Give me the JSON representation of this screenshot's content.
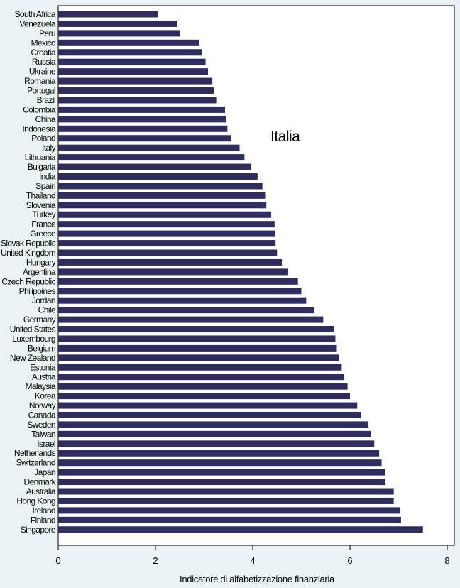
{
  "chart_data": {
    "type": "bar",
    "orientation": "horizontal",
    "categories": [
      "South Africa",
      "Venezuela",
      "Peru",
      "Mexico",
      "Croatia",
      "Russia",
      "Ukraine",
      "Romania",
      "Portugal",
      "Brazil",
      "Colombia",
      "China",
      "Indonesia",
      "Poland",
      "Italy",
      "Lithuania",
      "Bulgaria",
      "India",
      "Spain",
      "Thailand",
      "Slovenia",
      "Turkey",
      "France",
      "Greece",
      "Slovak Republic",
      "United Kingdom",
      "Hungary",
      "Argentina",
      "Czech Republic",
      "Philippines",
      "Jordan",
      "Chile",
      "Germany",
      "United States",
      "Luxembourg",
      "Belgium",
      "New Zealand",
      "Estonia",
      "Austria",
      "Malaysia",
      "Korea",
      "Norway",
      "Canada",
      "Sweden",
      "Taiwan",
      "Israel",
      "Netherlands",
      "Switzerland",
      "Japan",
      "Denmark",
      "Australia",
      "Hong Kong",
      "Ireland",
      "Finland",
      "Singapore"
    ],
    "values": [
      2.05,
      2.45,
      2.5,
      2.9,
      2.95,
      3.03,
      3.08,
      3.17,
      3.2,
      3.25,
      3.43,
      3.45,
      3.48,
      3.55,
      3.73,
      3.83,
      3.97,
      4.1,
      4.2,
      4.27,
      4.28,
      4.38,
      4.45,
      4.46,
      4.47,
      4.5,
      4.6,
      4.73,
      4.93,
      5.0,
      5.1,
      5.27,
      5.45,
      5.67,
      5.7,
      5.73,
      5.77,
      5.83,
      5.88,
      5.95,
      6.0,
      6.15,
      6.22,
      6.38,
      6.43,
      6.5,
      6.6,
      6.65,
      6.73,
      6.73,
      6.9,
      6.9,
      7.03,
      7.05,
      7.5
    ],
    "xlabel": "Indicatore di alfabetizzazione finanziaria",
    "ylabel": "",
    "xlim": [
      0,
      8
    ],
    "xticks": [
      0,
      2,
      4,
      6,
      8
    ],
    "grid": false,
    "legend": "none",
    "annotation": "Italia",
    "bar_color": "#2e2d5e",
    "plot_background": "#ffffff",
    "page_background": "#eaf2f3"
  }
}
